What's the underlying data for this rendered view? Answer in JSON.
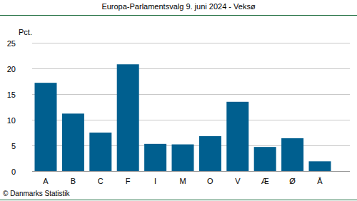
{
  "chart_data": {
    "type": "bar",
    "title": "Europa-Parlamentsvalg 9. juni 2024 - Veksø",
    "y_label": "Pct.",
    "categories": [
      "A",
      "B",
      "C",
      "F",
      "I",
      "M",
      "O",
      "V",
      "Æ",
      "Ø",
      "Å"
    ],
    "values": [
      17.2,
      11.2,
      7.5,
      20.8,
      5.3,
      5.2,
      6.8,
      13.5,
      4.7,
      6.4,
      1.9
    ],
    "color": "#005f8f",
    "ylim": [
      0,
      25
    ],
    "yticks": [
      0,
      5,
      10,
      15,
      20,
      25
    ],
    "grid": true,
    "annotations": [
      "© Danmarks Statistik"
    ]
  }
}
